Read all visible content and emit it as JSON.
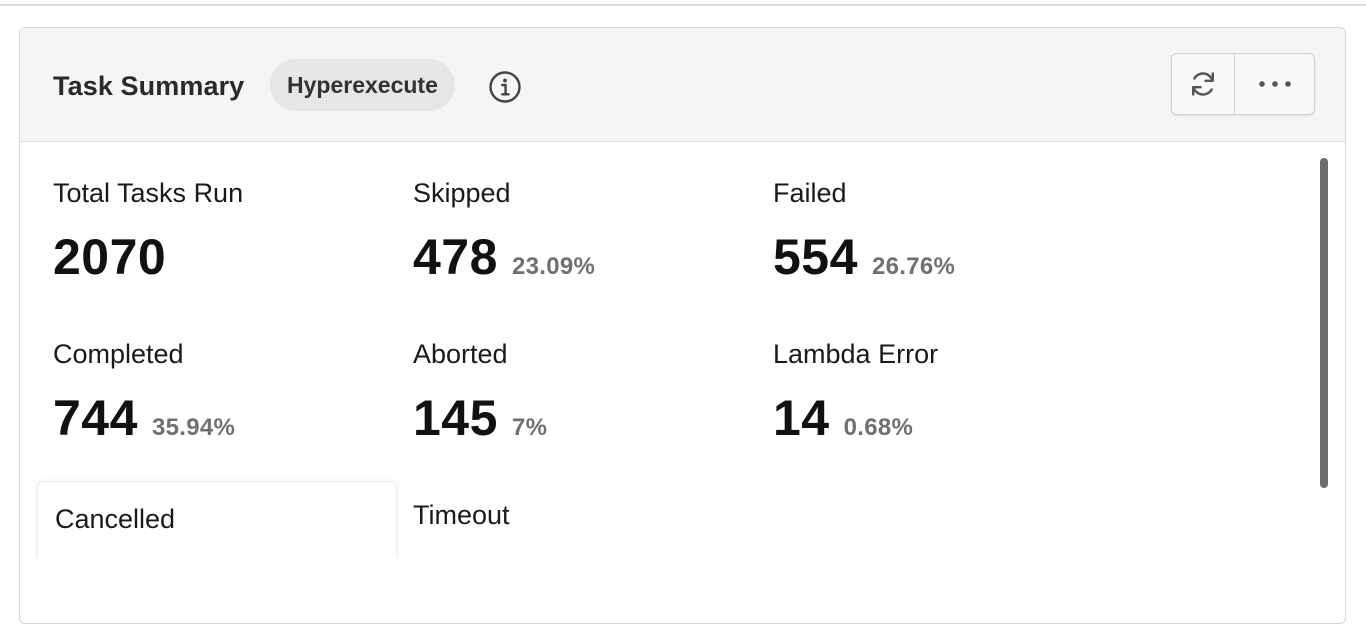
{
  "card": {
    "title": "Task Summary",
    "badge": "Hyperexecute"
  },
  "icons": {
    "info": "info-circle-icon",
    "refresh": "refresh-icon",
    "more": "more-horizontal-icon"
  },
  "metrics": [
    {
      "label": "Total Tasks Run",
      "value": "2070",
      "percent": ""
    },
    {
      "label": "Skipped",
      "value": "478",
      "percent": "23.09%"
    },
    {
      "label": "Failed",
      "value": "554",
      "percent": "26.76%"
    },
    {
      "label": "Completed",
      "value": "744",
      "percent": "35.94%"
    },
    {
      "label": "Aborted",
      "value": "145",
      "percent": "7%"
    },
    {
      "label": "Lambda Error",
      "value": "14",
      "percent": "0.68%"
    },
    {
      "label": "Cancelled",
      "value": "",
      "percent": ""
    },
    {
      "label": "Timeout",
      "value": "",
      "percent": ""
    }
  ],
  "colors": {
    "header_bg": "#f5f5f5",
    "badge_bg": "#e6e6e6",
    "percent_text": "#707070",
    "scroll_thumb": "#6d6d6d"
  }
}
